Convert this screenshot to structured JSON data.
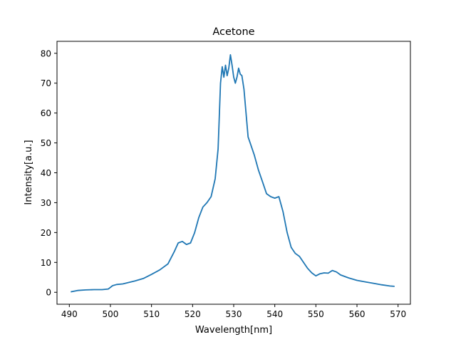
{
  "chart_data": {
    "type": "line",
    "title": "Acetone",
    "xlabel": "Wavelength[nm]",
    "ylabel": "Intensity[a.u.]",
    "xlim": [
      487,
      573
    ],
    "ylim": [
      -4,
      84
    ],
    "xticks": [
      490,
      500,
      510,
      520,
      530,
      540,
      550,
      560,
      570
    ],
    "yticks": [
      0,
      10,
      20,
      30,
      40,
      50,
      60,
      70,
      80
    ],
    "grid": false,
    "legend": null,
    "line_color": "#1f77b4",
    "series": [
      {
        "name": "Acetone",
        "x": [
          490.5,
          492,
          494,
          496,
          498,
          499.5,
          500.5,
          501.5,
          503,
          504.5,
          506,
          508,
          510,
          512,
          514,
          515.5,
          516.5,
          517.5,
          518.5,
          519.5,
          520.5,
          521.5,
          522.5,
          523.5,
          524.5,
          525.5,
          526.2,
          526.8,
          527.2,
          527.6,
          528.0,
          528.4,
          528.8,
          529.2,
          529.6,
          530.0,
          530.4,
          530.8,
          531.2,
          531.6,
          532.0,
          532.5,
          533.0,
          533.5,
          534.0,
          535.0,
          536.0,
          537.0,
          538.0,
          539.0,
          540.0,
          541.0,
          542.0,
          543.0,
          544.0,
          545.0,
          546.0,
          547.0,
          548.0,
          549.0,
          550.0,
          551.0,
          552.0,
          553.0,
          554.0,
          555.0,
          556.0,
          558.0,
          560.0,
          562.0,
          564.0,
          566.0,
          568.0,
          569.0
        ],
        "y": [
          0.2,
          0.6,
          0.8,
          0.9,
          0.9,
          1.1,
          2.2,
          2.6,
          2.8,
          3.3,
          3.8,
          4.6,
          6.0,
          7.5,
          9.5,
          13.5,
          16.5,
          17.0,
          16.0,
          16.5,
          20.0,
          25.0,
          28.5,
          30.0,
          32.0,
          38.0,
          48.0,
          70.0,
          75.5,
          72.0,
          76.0,
          72.5,
          75.0,
          79.5,
          76.0,
          72.0,
          70.0,
          72.0,
          75.0,
          73.0,
          72.5,
          68.0,
          60.0,
          52.0,
          50.0,
          46.0,
          41.0,
          37.0,
          33.0,
          32.0,
          31.5,
          32.0,
          27.0,
          20.0,
          15.0,
          13.0,
          12.0,
          10.0,
          8.0,
          6.5,
          5.5,
          6.2,
          6.5,
          6.4,
          7.3,
          6.8,
          5.8,
          4.8,
          4.0,
          3.5,
          3.0,
          2.5,
          2.1,
          2.0
        ]
      }
    ]
  }
}
